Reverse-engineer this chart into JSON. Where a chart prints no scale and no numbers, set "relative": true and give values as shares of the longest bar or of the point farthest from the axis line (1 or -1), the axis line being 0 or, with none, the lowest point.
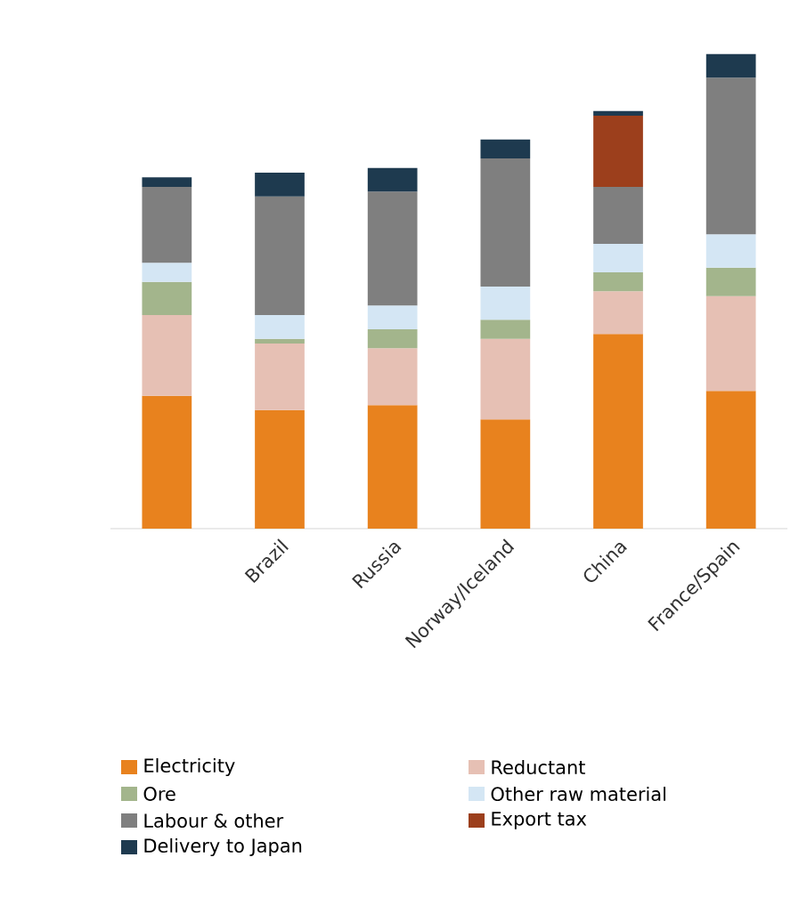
{
  "chart_data": {
    "type": "bar",
    "stacked": true,
    "relative": true,
    "legend": "bottom",
    "categories": [
      null,
      "Brazil",
      "Russia",
      "Norway/Iceland",
      "China",
      "France/Spain"
    ],
    "series": [
      {
        "name": "Electricity",
        "color": "#e8821e",
        "values": [
          0.28,
          0.25,
          0.26,
          0.23,
          0.41,
          0.29
        ]
      },
      {
        "name": "Reductant",
        "color": "#e6c0b4",
        "values": [
          0.17,
          0.14,
          0.12,
          0.17,
          0.09,
          0.2
        ]
      },
      {
        "name": "Ore",
        "color": "#a3b58c",
        "values": [
          0.07,
          0.01,
          0.04,
          0.04,
          0.04,
          0.06
        ]
      },
      {
        "name": "Other raw material",
        "color": "#d4e6f4",
        "values": [
          0.04,
          0.05,
          0.05,
          0.07,
          0.06,
          0.07
        ]
      },
      {
        "name": "Labour & other",
        "color": "#7f7f7f",
        "values": [
          0.16,
          0.25,
          0.24,
          0.27,
          0.12,
          0.33
        ]
      },
      {
        "name": "Export tax",
        "color": "#9c3f1c",
        "values": [
          null,
          null,
          null,
          null,
          0.15,
          null
        ]
      },
      {
        "name": "Delivery to Japan",
        "color": "#1e3a4f",
        "values": [
          0.02,
          0.05,
          0.05,
          0.04,
          0.01,
          0.05
        ]
      }
    ]
  }
}
